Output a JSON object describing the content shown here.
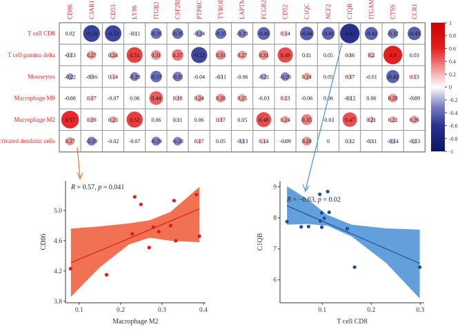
{
  "chart_data": [
    {
      "type": "heatmap",
      "title": "",
      "columns": [
        "CD86",
        "C3AR1",
        "CD53",
        "LY86",
        "ITGB2",
        "CSF2RB",
        "PTPRC",
        "TYROBP",
        "LAPTM5",
        "FCGR2B",
        "CD52",
        "C1QC",
        "NCF2",
        "C1QB",
        "ITGAM",
        "CTSS",
        "CCR1"
      ],
      "rows": [
        "T cell CD8",
        "T cell gamma delta",
        "Monocytes",
        "Macrophage M0",
        "Macrophage M2",
        "Activated dendritic cells"
      ],
      "values": [
        [
          0.02,
          -0.54,
          -0.53,
          -0.11,
          -0.35,
          -0.35,
          -0.24,
          -0.35,
          -0.29,
          -0.41,
          0.14,
          -0.44,
          -0.41,
          -0.63,
          -0.42,
          -0.32,
          -0.43
        ],
        [
          -0.13,
          0.27,
          0.24,
          0.51,
          0.31,
          0.37,
          -0.52,
          0.31,
          0.27,
          0.31,
          0.49,
          0.11,
          0.05,
          0.16,
          0.2,
          0.6,
          0.03
        ],
        [
          -0.22,
          -0.16,
          0.14,
          -0.29,
          -0.37,
          -0.31,
          -0.04,
          -0.11,
          -0.06,
          -0.21,
          -0.28,
          0.24,
          0.05,
          0.17,
          -0.01,
          -0.42,
          0.13
        ],
        [
          -0.08,
          0.17,
          -0.07,
          0.06,
          0.44,
          0.18,
          0.24,
          0.28,
          0.25,
          -0.03,
          0.13,
          -0.06,
          0.06,
          -0.12,
          0.06,
          0.28,
          -0.09
        ],
        [
          0.57,
          0.19,
          0.23,
          0.52,
          0.06,
          0.11,
          0.06,
          0.17,
          0.05,
          0.48,
          0.24,
          0.35,
          -0.03,
          0.47,
          0.21,
          0.22,
          0.26
        ],
        [
          0.27,
          -0.29,
          -0.02,
          -0.07,
          -0.29,
          -0.28,
          0.17,
          0.05,
          -0.13,
          0.14,
          -0.09,
          0.29,
          0,
          0.12,
          -0.11,
          -0.14,
          -0.13
        ]
      ],
      "colorbar": {
        "range": [
          -1,
          1
        ],
        "ticks": [
          "1",
          "0.8",
          "0.6",
          "0.4",
          "0.2",
          "0",
          "-0.2",
          "-0.4",
          "-0.6",
          "-0.8",
          "-1"
        ],
        "low_color": "#0a1660",
        "mid_color": "#ffffff",
        "high_color": "#cc0000"
      },
      "label_color": "#e8262b"
    },
    {
      "type": "scatter",
      "annotation": "R = 0.57, p = 0.041",
      "annotation_parts": {
        "r_label": "R",
        "r_value": " = 0.57, ",
        "p_label": "p",
        "p_value": " = 0.041"
      },
      "xlabel": "Macrophage M2",
      "ylabel": "CD86",
      "xlim": [
        0.067,
        0.405
      ],
      "ylim": [
        3.78,
        5.39
      ],
      "xticks": [
        0.1,
        0.2,
        0.3,
        0.4
      ],
      "xtick_labels": [
        "0.1",
        "0.2",
        "0.3",
        "0.4"
      ],
      "yticks": [
        3.8,
        4.2,
        4.6,
        5.0
      ],
      "ytick_labels": [
        "3.8",
        "4.2",
        "4.6",
        "5.0"
      ],
      "color": "#e31a1c",
      "band_color": "#ef6a4a",
      "points": [
        [
          0.079,
          4.23
        ],
        [
          0.166,
          4.15
        ],
        [
          0.234,
          5.18
        ],
        [
          0.249,
          5.08
        ],
        [
          0.228,
          4.69
        ],
        [
          0.279,
          4.78
        ],
        [
          0.292,
          4.72
        ],
        [
          0.269,
          4.51
        ],
        [
          0.321,
          4.8
        ],
        [
          0.329,
          5.13
        ],
        [
          0.333,
          4.6
        ],
        [
          0.383,
          5.21
        ],
        [
          0.39,
          4.66
        ]
      ],
      "fit_line": [
        [
          0.08,
          4.31
        ],
        [
          0.39,
          5.02
        ]
      ],
      "confidence_band": {
        "x": [
          0.08,
          0.15,
          0.22,
          0.27,
          0.32,
          0.39
        ],
        "lower": [
          3.86,
          4.25,
          4.55,
          4.64,
          4.6,
          4.58
        ],
        "upper": [
          4.76,
          4.79,
          4.83,
          4.87,
          4.98,
          5.31
        ]
      }
    },
    {
      "type": "scatter",
      "annotation": "R = -0.63, p = 0.02",
      "annotation_parts": {
        "r_label": "R",
        "r_value": " = −0.63, ",
        "p_label": "p",
        "p_value": " = 0.02"
      },
      "xlabel": "T cell CD8",
      "ylabel": "C1QB",
      "xlim": [
        0.0137,
        0.308
      ],
      "ylim": [
        5.26,
        9.19
      ],
      "xticks": [
        0.1,
        0.2,
        0.3
      ],
      "xtick_labels": [
        "0.1",
        "0.2",
        "0.3"
      ],
      "yticks": [
        6,
        7,
        8,
        9
      ],
      "ytick_labels": [
        "6",
        "7",
        "8",
        "9"
      ],
      "color": "#1f4ea0",
      "band_color": "#5b9bd9",
      "points": [
        [
          0.028,
          7.88
        ],
        [
          0.057,
          7.71
        ],
        [
          0.072,
          7.72
        ],
        [
          0.095,
          8.76
        ],
        [
          0.111,
          8.85
        ],
        [
          0.099,
          8.16
        ],
        [
          0.114,
          8.18
        ],
        [
          0.104,
          7.99
        ],
        [
          0.096,
          7.9
        ],
        [
          0.099,
          7.7
        ],
        [
          0.151,
          7.65
        ],
        [
          0.166,
          6.41
        ],
        [
          0.299,
          6.41
        ]
      ],
      "fit_line": [
        [
          0.028,
          8.39
        ],
        [
          0.299,
          6.53
        ]
      ],
      "confidence_band": {
        "x": [
          0.028,
          0.07,
          0.11,
          0.16,
          0.23,
          0.299
        ],
        "lower": [
          7.78,
          7.8,
          7.75,
          7.4,
          6.55,
          5.4
        ],
        "upper": [
          9.02,
          8.6,
          8.1,
          7.78,
          7.66,
          7.62
        ]
      }
    }
  ],
  "connectors": [
    {
      "from": "Macrophage M2 / CD86",
      "to": "left scatter",
      "color": "#f26b3a"
    },
    {
      "from": "T cell CD8 / C1QB",
      "to": "right scatter",
      "color": "#4a90e2"
    }
  ]
}
